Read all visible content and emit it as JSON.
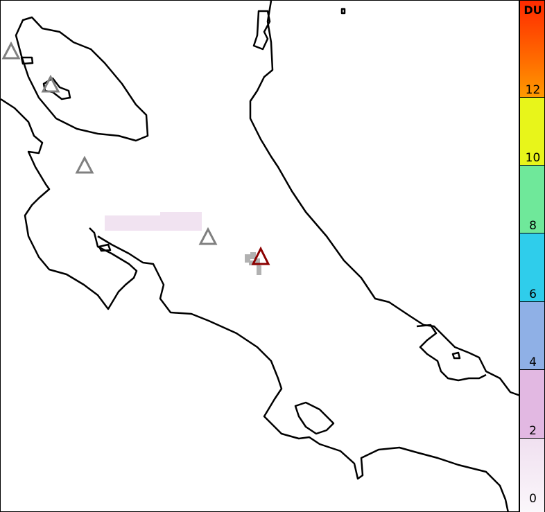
{
  "colorbar": {
    "unit": "DU",
    "ticks": [
      "0",
      "2",
      "4",
      "6",
      "8",
      "10",
      "12"
    ],
    "tick_values": [
      0,
      2,
      4,
      6,
      8,
      10,
      12
    ],
    "max": 15,
    "bins": [
      {
        "from": 0,
        "to": 2,
        "color": "#f7eef7"
      },
      {
        "from": 2,
        "to": 4,
        "color": "#e2b8e2"
      },
      {
        "from": 4,
        "to": 6,
        "color": "#8fb0e6"
      },
      {
        "from": 6,
        "to": 8,
        "color": "#2fcdeb"
      },
      {
        "from": 8,
        "to": 10,
        "color": "#6fe89a"
      },
      {
        "from": 10,
        "to": 12,
        "color": "#e8f51a"
      },
      {
        "from": 12,
        "to": 15,
        "color": "#ff6a00"
      }
    ]
  },
  "volcanoes": {
    "inactive_color": "#808080",
    "active_color": "#8b0000",
    "count_inactive": 4,
    "count_active": 1
  },
  "coastline_color": "#000000"
}
